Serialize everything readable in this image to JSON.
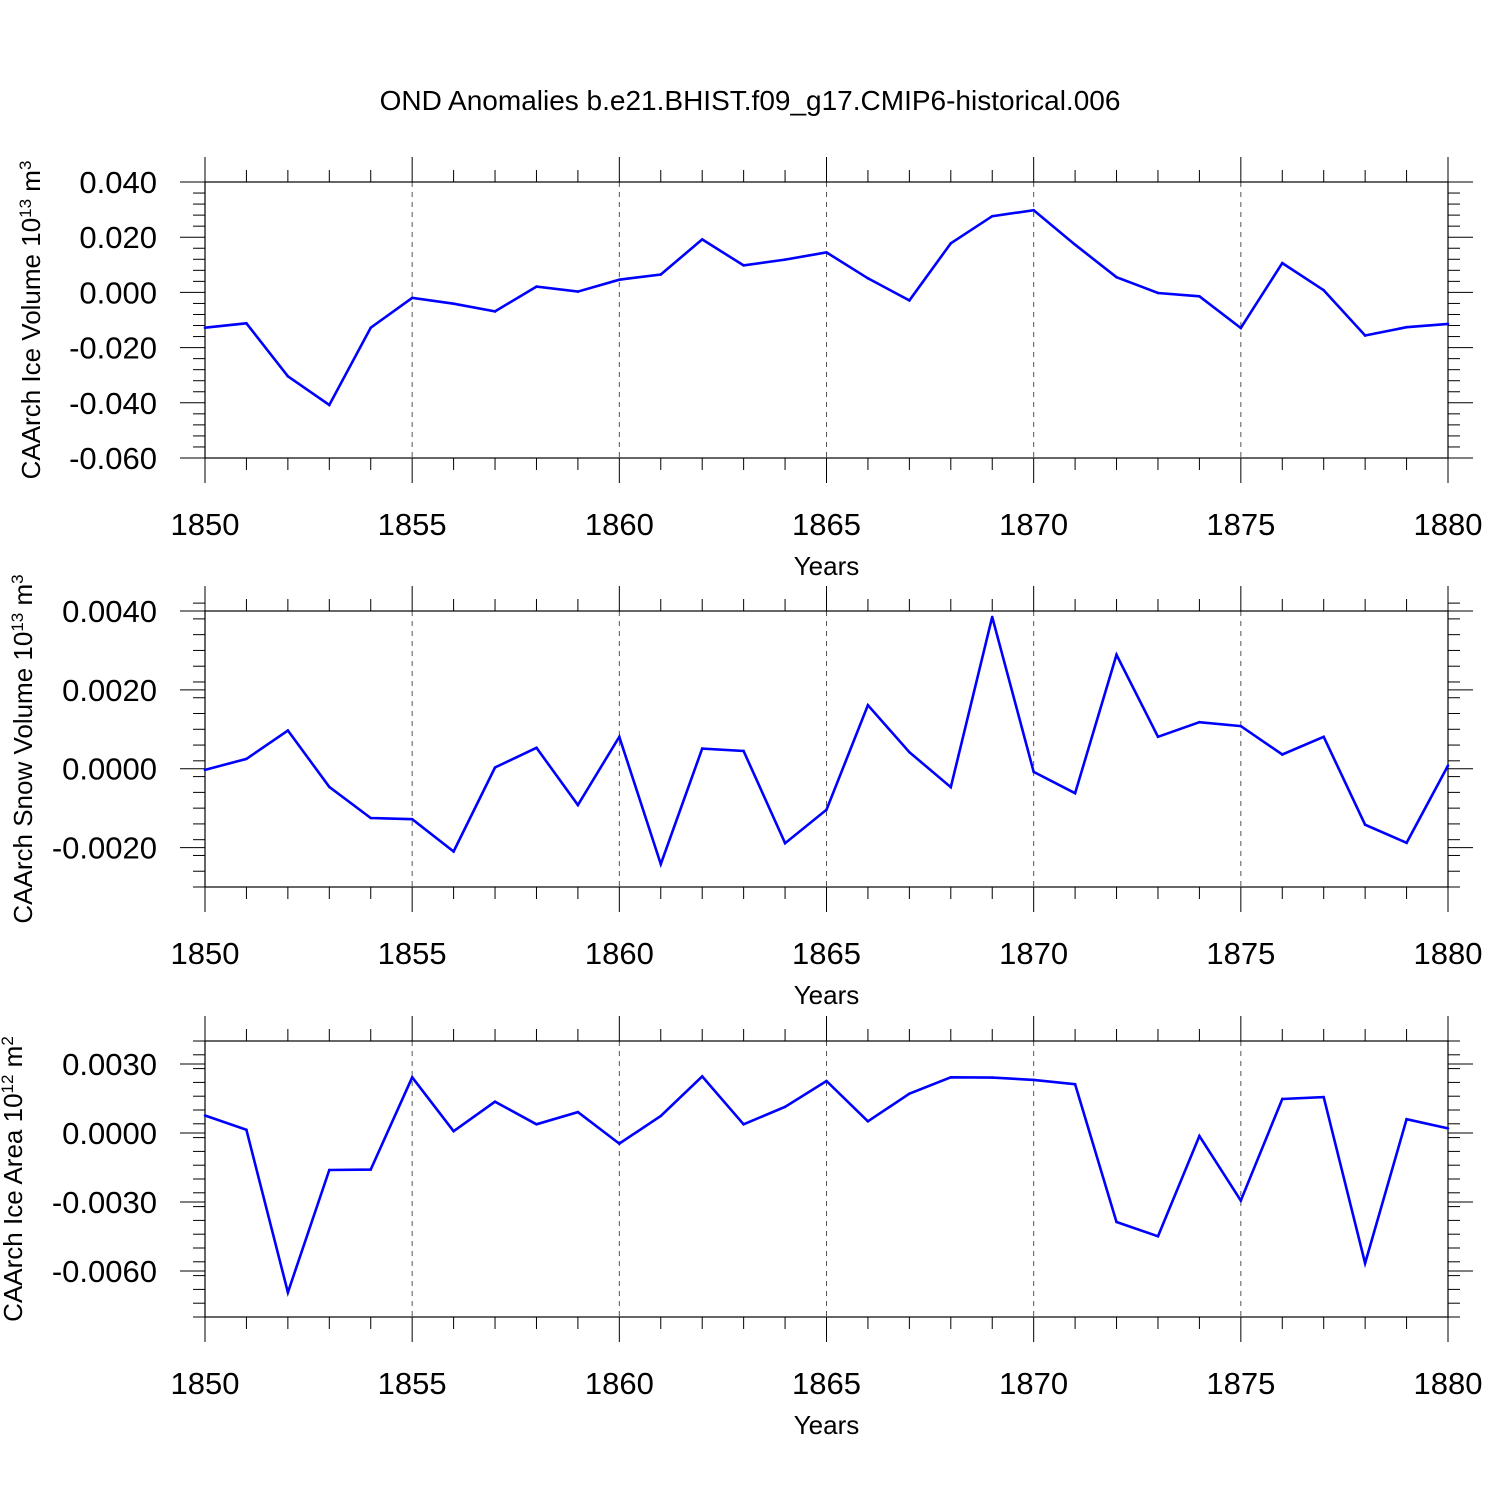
{
  "title": "OND Anomalies b.e21.BHIST.f09_g17.CMIP6-historical.006",
  "series_color": "#0000ff",
  "chart_data": [
    {
      "type": "line",
      "ylabel": "CAArch Ice Volume 10",
      "ylabel_exp": "13",
      "ylabel_unit": " m",
      "ylabel_unit_exp": "3",
      "xlabel": "Years",
      "xlim": [
        1850,
        1880
      ],
      "ylim": [
        -0.06,
        0.04
      ],
      "yticks": [
        0.04,
        0.02,
        0.0,
        -0.02,
        -0.04,
        -0.06
      ],
      "ytick_labels": [
        "0.040",
        "0.020",
        "0.000",
        "-0.020",
        "-0.040",
        "-0.060"
      ],
      "xticks": [
        1850,
        1855,
        1860,
        1865,
        1870,
        1875,
        1880
      ],
      "xtick_labels": [
        "1850",
        "1855",
        "1860",
        "1865",
        "1870",
        "1875",
        "1880"
      ],
      "x": [
        1850,
        1851,
        1852,
        1853,
        1854,
        1855,
        1856,
        1857,
        1858,
        1859,
        1860,
        1861,
        1862,
        1863,
        1864,
        1865,
        1866,
        1867,
        1868,
        1869,
        1870,
        1871,
        1872,
        1873,
        1874,
        1875,
        1876,
        1877,
        1878,
        1879,
        1880
      ],
      "values": [
        -0.0128,
        -0.0112,
        -0.0304,
        -0.0408,
        -0.0128,
        -0.002,
        -0.0041,
        -0.0069,
        0.0021,
        0.0003,
        0.0046,
        0.0065,
        0.0192,
        0.0098,
        0.0119,
        0.0145,
        0.0051,
        -0.0029,
        0.0178,
        0.0276,
        0.0298,
        0.0173,
        0.0055,
        -0.0002,
        -0.0014,
        -0.0129,
        0.0106,
        0.0008,
        -0.0156,
        -0.0126,
        -0.0114
      ]
    },
    {
      "type": "line",
      "ylabel": "CAArch Snow Volume 10",
      "ylabel_exp": "13",
      "ylabel_unit": " m",
      "ylabel_unit_exp": "3",
      "xlabel": "Years",
      "xlim": [
        1850,
        1880
      ],
      "ylim": [
        -0.003,
        0.004
      ],
      "yticks": [
        0.004,
        0.002,
        0.0,
        -0.002
      ],
      "ytick_labels": [
        "0.0040",
        "0.0020",
        "0.0000",
        "-0.0020"
      ],
      "xticks": [
        1850,
        1855,
        1860,
        1865,
        1870,
        1875,
        1880
      ],
      "xtick_labels": [
        "1850",
        "1855",
        "1860",
        "1865",
        "1870",
        "1875",
        "1880"
      ],
      "x": [
        1850,
        1851,
        1852,
        1853,
        1854,
        1855,
        1856,
        1857,
        1858,
        1859,
        1860,
        1861,
        1862,
        1863,
        1864,
        1865,
        1866,
        1867,
        1868,
        1869,
        1870,
        1871,
        1872,
        1873,
        1874,
        1875,
        1876,
        1877,
        1878,
        1879,
        1880
      ],
      "values": [
        -3e-05,
        0.00025,
        0.00097,
        -0.00046,
        -0.00125,
        -0.00128,
        -0.0021,
        3e-05,
        0.00053,
        -0.00092,
        0.00081,
        -0.00242,
        0.00051,
        0.00045,
        -0.00189,
        -0.00104,
        0.00161,
        0.00042,
        -0.00047,
        0.00385,
        -8e-05,
        -0.00062,
        0.00289,
        0.00081,
        0.00118,
        0.00108,
        0.00036,
        0.00081,
        -0.00142,
        -0.00188,
        8e-05
      ]
    },
    {
      "type": "line",
      "ylabel": "CAArch Ice Area 10",
      "ylabel_exp": "12",
      "ylabel_unit": " m",
      "ylabel_unit_exp": "2",
      "xlabel": "Years",
      "xlim": [
        1850,
        1880
      ],
      "ylim": [
        -0.008,
        0.004
      ],
      "yticks": [
        0.003,
        0.0,
        -0.003,
        -0.006
      ],
      "ytick_labels": [
        "0.0030",
        "0.0000",
        "-0.0030",
        "-0.0060"
      ],
      "xticks": [
        1850,
        1855,
        1860,
        1865,
        1870,
        1875,
        1880
      ],
      "xtick_labels": [
        "1850",
        "1855",
        "1860",
        "1865",
        "1870",
        "1875",
        "1880"
      ],
      "x": [
        1850,
        1851,
        1852,
        1853,
        1854,
        1855,
        1856,
        1857,
        1858,
        1859,
        1860,
        1861,
        1862,
        1863,
        1864,
        1865,
        1866,
        1867,
        1868,
        1869,
        1870,
        1871,
        1872,
        1873,
        1874,
        1875,
        1876,
        1877,
        1878,
        1879,
        1880
      ],
      "values": [
        0.00076,
        0.00014,
        -0.00693,
        -0.00161,
        -0.00159,
        0.00242,
        8e-05,
        0.00136,
        0.00038,
        0.00091,
        -0.00046,
        0.00074,
        0.00246,
        0.00038,
        0.00114,
        0.00226,
        0.00051,
        0.00171,
        0.00242,
        0.00241,
        0.00231,
        0.00212,
        -0.00387,
        -0.00449,
        -0.00013,
        -0.00294,
        0.00148,
        0.00156,
        -0.00566,
        0.0006,
        0.0002
      ]
    }
  ]
}
